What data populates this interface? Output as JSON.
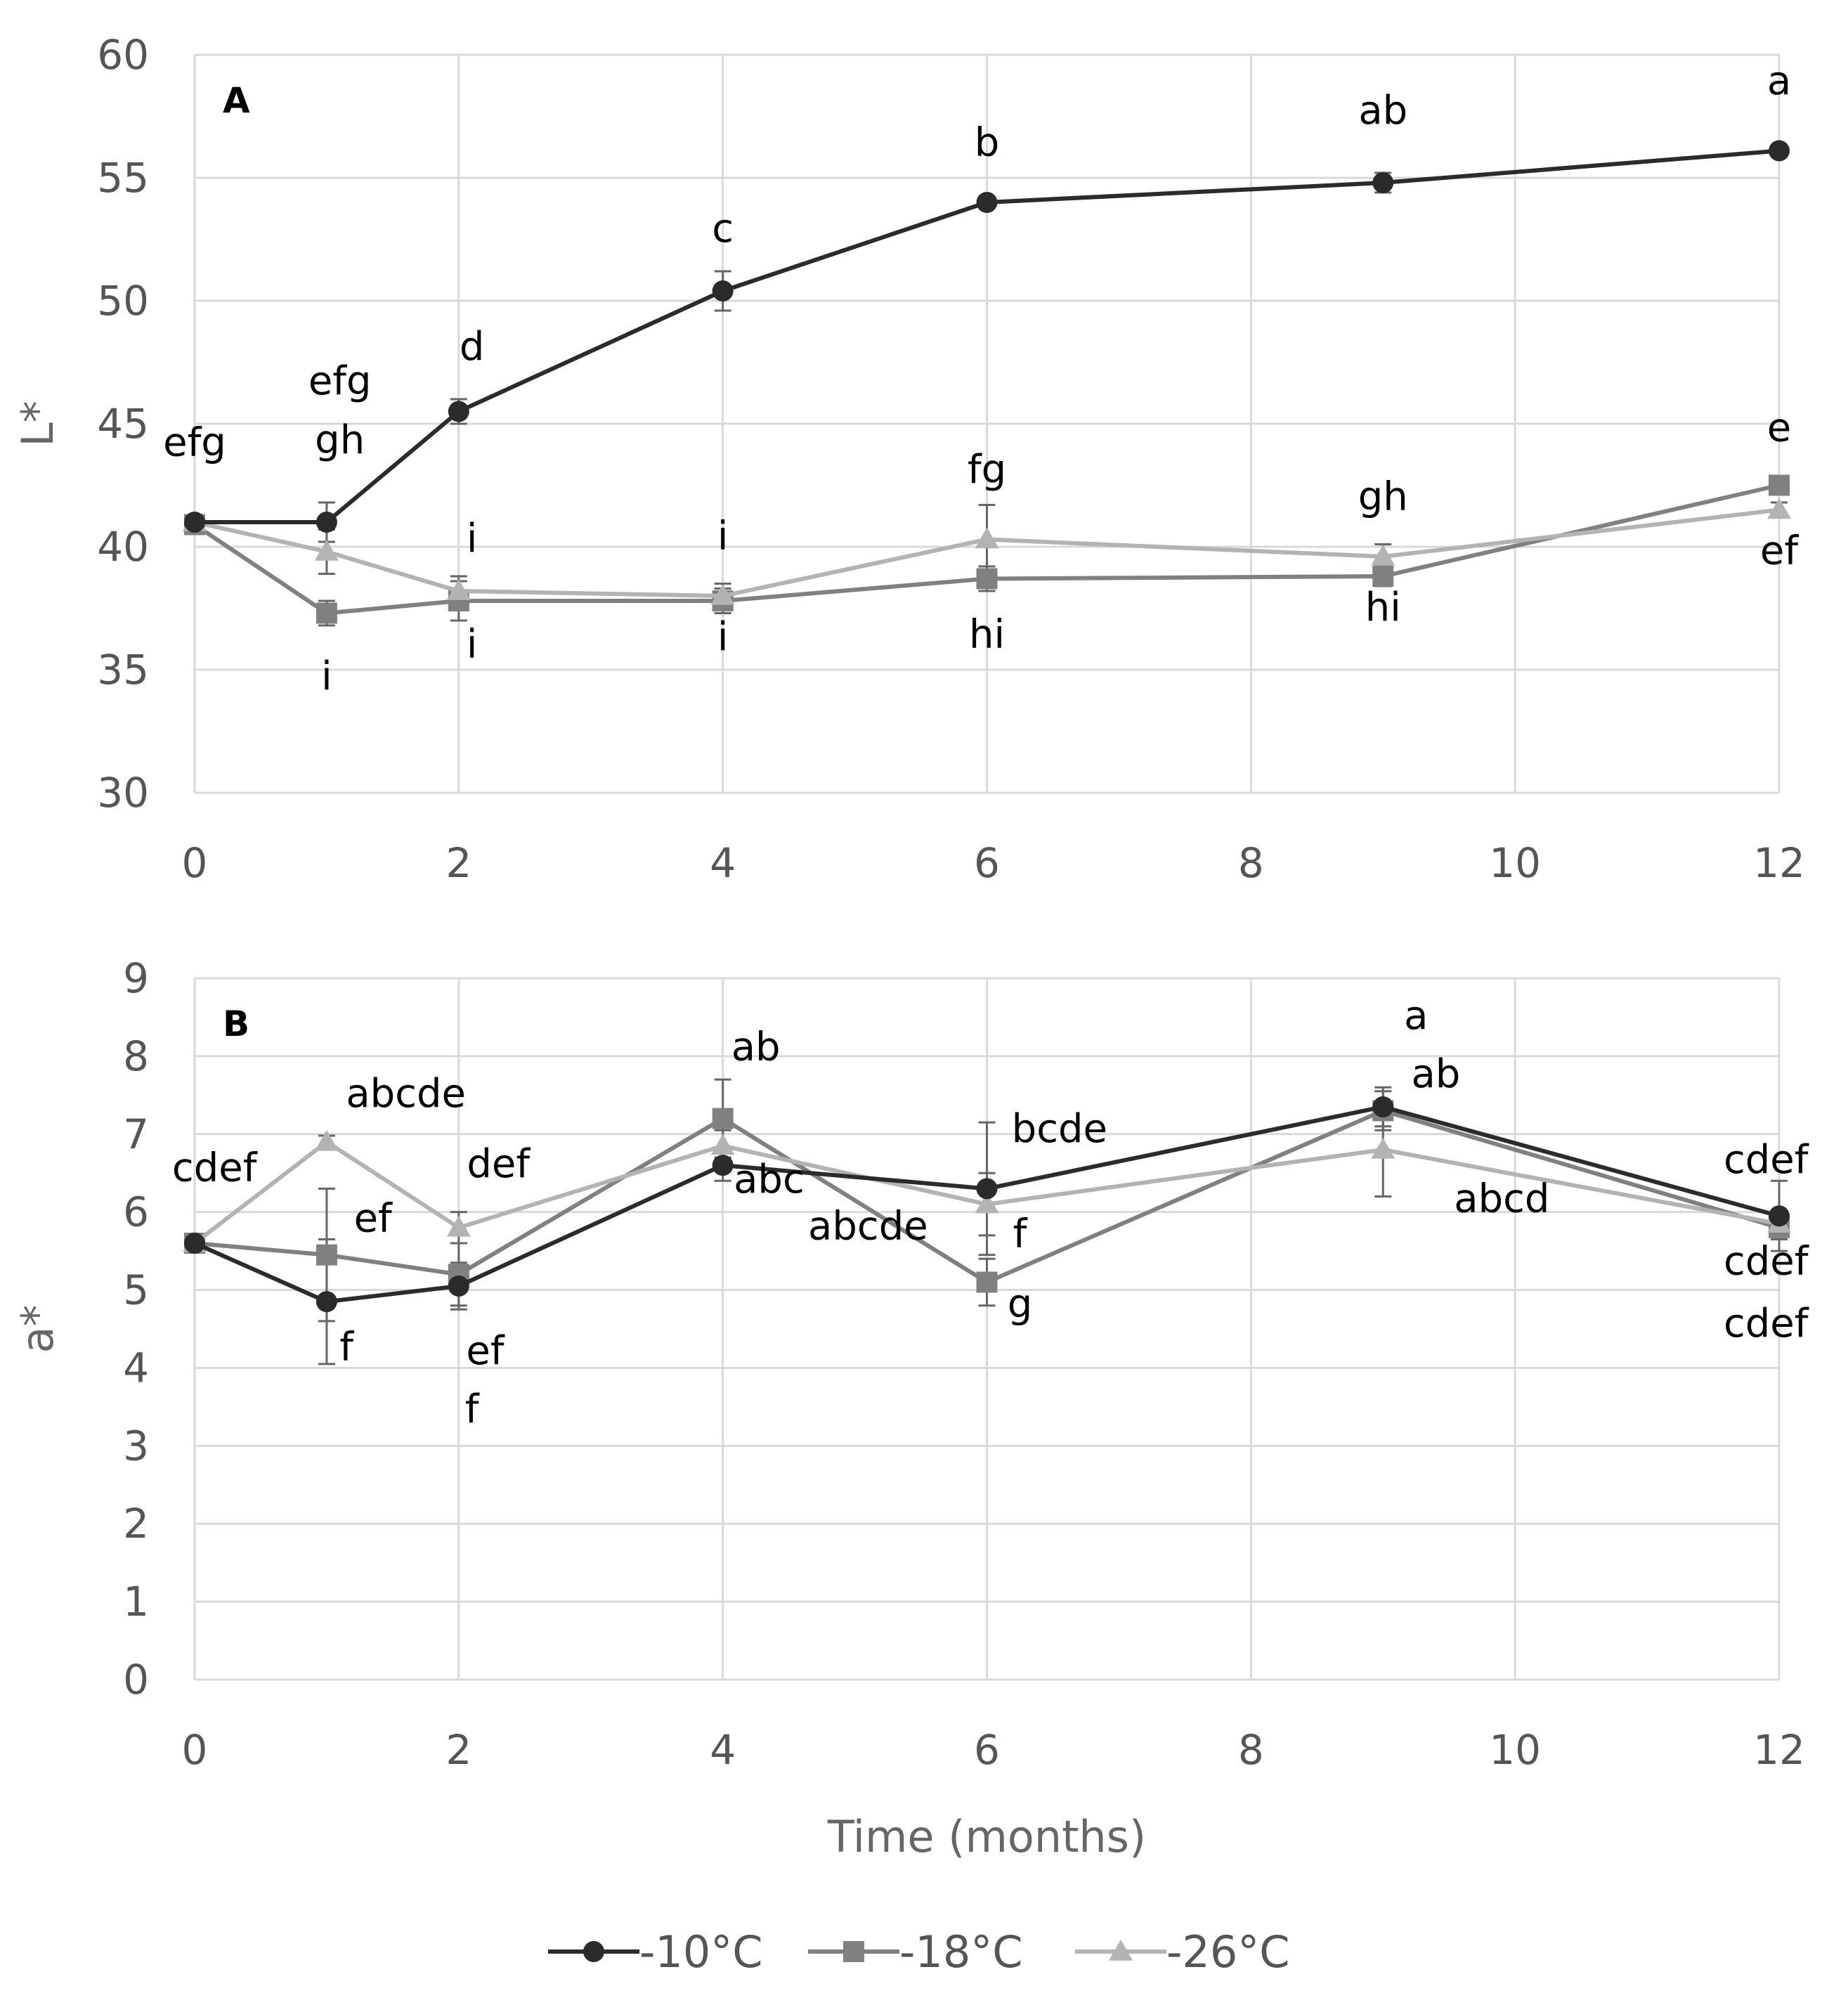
{
  "chart_data": [
    {
      "type": "line",
      "panel_label": "A",
      "ylabel": "L*",
      "xlabel": "",
      "ylim": [
        30,
        60
      ],
      "yticks": [
        30,
        35,
        40,
        45,
        50,
        55,
        60
      ],
      "xlim": [
        0,
        12
      ],
      "xticks": [
        0,
        2,
        4,
        6,
        8,
        10,
        12
      ],
      "grid": true,
      "series": [
        {
          "name": "-10°C",
          "color": "#2b2b2b",
          "marker": "circle",
          "x": [
            0,
            1,
            2,
            4,
            6,
            9,
            12
          ],
          "values": [
            41.0,
            41.0,
            45.5,
            50.4,
            54.0,
            54.8,
            56.1
          ],
          "errors": [
            0.2,
            0.8,
            0.5,
            0.8,
            0.2,
            0.4,
            0.2
          ]
        },
        {
          "name": "-18°C",
          "color": "#808080",
          "marker": "square",
          "x": [
            0,
            1,
            2,
            4,
            6,
            9,
            12
          ],
          "values": [
            40.9,
            37.3,
            37.8,
            37.8,
            38.7,
            38.8,
            42.5
          ],
          "errors": [
            0.2,
            0.5,
            0.8,
            0.5,
            0.5,
            0.4,
            0.3
          ]
        },
        {
          "name": "-26°C",
          "color": "#b3b3b3",
          "marker": "triangle",
          "x": [
            0,
            1,
            2,
            4,
            6,
            9,
            12
          ],
          "values": [
            41.0,
            39.8,
            38.2,
            38.0,
            40.3,
            39.6,
            41.5
          ],
          "errors": [
            0.2,
            0.9,
            0.6,
            0.5,
            1.4,
            0.5,
            0.3
          ]
        }
      ],
      "annotations": [
        {
          "text": "efg",
          "x": 0,
          "y": 43.7
        },
        {
          "text": "efg",
          "x": 1.1,
          "y": 46.2
        },
        {
          "text": "gh",
          "x": 1.1,
          "y": 43.8
        },
        {
          "text": "i",
          "x": 1,
          "y": 34.2
        },
        {
          "text": "d",
          "x": 2.1,
          "y": 47.6
        },
        {
          "text": "i",
          "x": 2.1,
          "y": 39.8
        },
        {
          "text": "i",
          "x": 2.1,
          "y": 35.5
        },
        {
          "text": "c",
          "x": 4,
          "y": 52.4
        },
        {
          "text": "i",
          "x": 4,
          "y": 39.9
        },
        {
          "text": "i",
          "x": 4,
          "y": 35.8
        },
        {
          "text": "b",
          "x": 6,
          "y": 55.9
        },
        {
          "text": "fg",
          "x": 6,
          "y": 42.6
        },
        {
          "text": "hi",
          "x": 6,
          "y": 35.9
        },
        {
          "text": "ab",
          "x": 9,
          "y": 57.2
        },
        {
          "text": "gh",
          "x": 9,
          "y": 41.5
        },
        {
          "text": "hi",
          "x": 9,
          "y": 37.0
        },
        {
          "text": "a",
          "x": 12,
          "y": 58.4
        },
        {
          "text": "e",
          "x": 12,
          "y": 44.3
        },
        {
          "text": "ef",
          "x": 12,
          "y": 39.3
        }
      ]
    },
    {
      "type": "line",
      "panel_label": "B",
      "ylabel": "a*",
      "xlabel": "Time (months)",
      "ylim": [
        0,
        9
      ],
      "yticks": [
        0,
        1,
        2,
        3,
        4,
        5,
        6,
        7,
        8,
        9
      ],
      "xlim": [
        0,
        12
      ],
      "xticks": [
        0,
        2,
        4,
        6,
        8,
        10,
        12
      ],
      "grid": true,
      "series": [
        {
          "name": "-10°C",
          "color": "#2b2b2b",
          "marker": "circle",
          "x": [
            0,
            1,
            2,
            4,
            6,
            9,
            12
          ],
          "values": [
            5.6,
            4.85,
            5.05,
            6.6,
            6.3,
            7.35,
            5.95
          ],
          "errors": [
            0.05,
            0.8,
            0.3,
            0.2,
            0.85,
            0.25,
            0.45
          ]
        },
        {
          "name": "-18°C",
          "color": "#808080",
          "marker": "square",
          "x": [
            0,
            1,
            2,
            4,
            6,
            9,
            12
          ],
          "values": [
            5.6,
            5.45,
            5.2,
            7.2,
            5.1,
            7.3,
            5.8
          ],
          "errors": [
            0.05,
            0.85,
            0.4,
            0.5,
            0.3,
            0.25,
            0.15
          ]
        },
        {
          "name": "-26°C",
          "color": "#b3b3b3",
          "marker": "triangle",
          "x": [
            0,
            1,
            2,
            4,
            6,
            9,
            12
          ],
          "values": [
            5.6,
            6.9,
            5.8,
            6.85,
            6.1,
            6.8,
            5.85
          ],
          "errors": [
            0.05,
            0.08,
            0.2,
            0.2,
            0.4,
            0.6,
            0.15
          ]
        }
      ],
      "annotations": [
        {
          "text": "cdef",
          "x": 0.15,
          "y": 6.4
        },
        {
          "text": "abcde",
          "x": 1.6,
          "y": 7.35
        },
        {
          "text": "ef",
          "x": 1.35,
          "y": 5.75
        },
        {
          "text": "f",
          "x": 1.15,
          "y": 4.1
        },
        {
          "text": "def",
          "x": 2.3,
          "y": 6.45
        },
        {
          "text": "ef",
          "x": 2.2,
          "y": 4.05
        },
        {
          "text": "f",
          "x": 2.1,
          "y": 3.3
        },
        {
          "text": "ab",
          "x": 4.25,
          "y": 7.95
        },
        {
          "text": "abc",
          "x": 4.35,
          "y": 6.25
        },
        {
          "text": "abcde",
          "x": 5.1,
          "y": 5.65
        },
        {
          "text": "bcde",
          "x": 6.55,
          "y": 6.9
        },
        {
          "text": "f",
          "x": 6.25,
          "y": 5.55
        },
        {
          "text": "g",
          "x": 6.25,
          "y": 4.65
        },
        {
          "text": "a",
          "x": 9.25,
          "y": 8.35
        },
        {
          "text": "ab",
          "x": 9.4,
          "y": 7.6
        },
        {
          "text": "abcd",
          "x": 9.9,
          "y": 6.0
        },
        {
          "text": "cdef",
          "x": 11.9,
          "y": 6.5
        },
        {
          "text": "cdef",
          "x": 11.9,
          "y": 5.2
        },
        {
          "text": "cdef",
          "x": 11.9,
          "y": 4.4
        }
      ]
    }
  ],
  "legend": {
    "position": "bottom-center",
    "entries": [
      {
        "label": "-10°C",
        "color": "#2b2b2b",
        "marker": "circle"
      },
      {
        "label": "-18°C",
        "color": "#808080",
        "marker": "square"
      },
      {
        "label": "-26°C",
        "color": "#b3b3b3",
        "marker": "triangle"
      }
    ]
  }
}
